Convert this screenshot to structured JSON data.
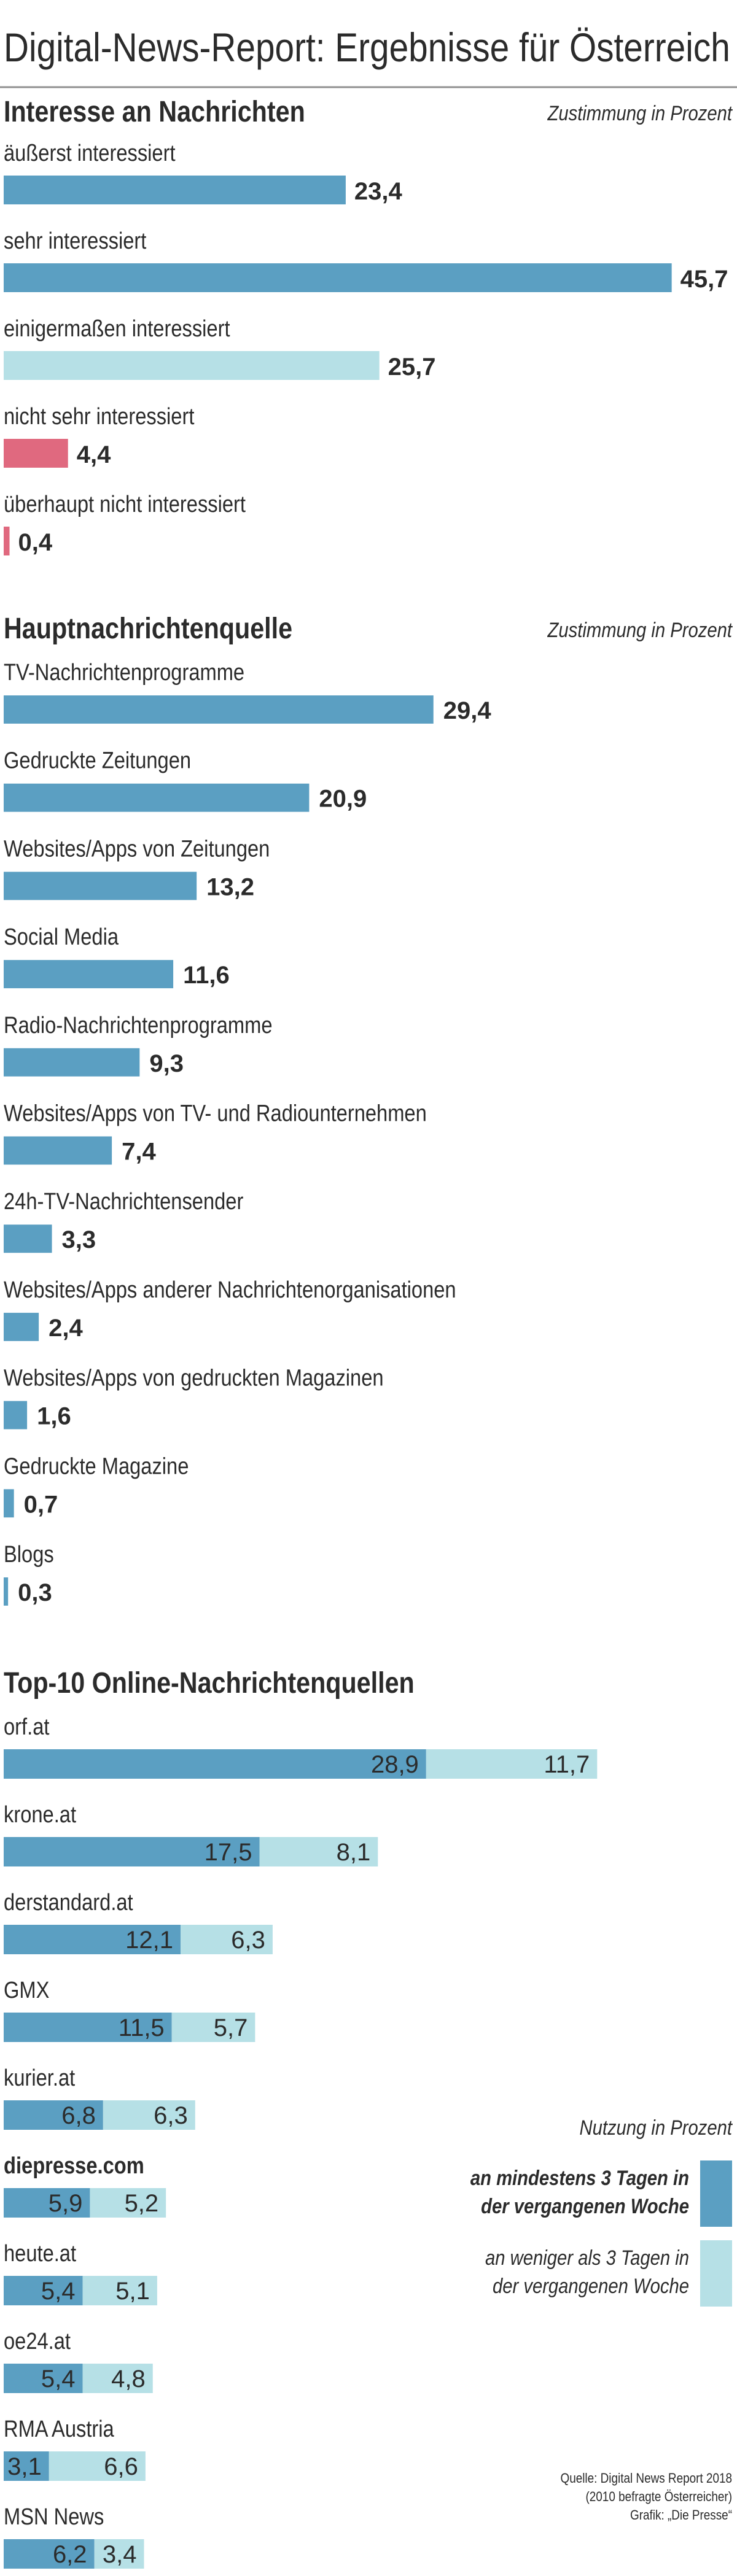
{
  "colors": {
    "dark_blue": "#5b9fc2",
    "light_blue": "#b6e0e6",
    "pink": "#e0697f",
    "text": "#2b2b2b",
    "rule": "#8f8f8f"
  },
  "page_title": "Digital-News-Report: Ergebnisse für Österreich",
  "chart_data": [
    {
      "type": "bar",
      "title": "Interesse an Nachrichten",
      "unit_note": "Zustimmung in Prozent",
      "categories": [
        "äußerst interessiert",
        "sehr interessiert",
        "einigermaßen interessiert",
        "nicht sehr interessiert",
        "überhaupt nicht interessiert"
      ],
      "values": [
        "23,4",
        "45,7",
        "25,7",
        "4,4",
        "0,4"
      ],
      "bar_colors": [
        "dark_blue",
        "dark_blue",
        "light_blue",
        "pink",
        "pink"
      ]
    },
    {
      "type": "bar",
      "title": "Hauptnachrichtenquelle",
      "unit_note": "Zustimmung in Prozent",
      "categories": [
        "TV-Nachrichtenprogramme",
        "Gedruckte Zeitungen",
        "Websites/Apps von Zeitungen",
        "Social Media",
        "Radio-Nachrichtenprogramme",
        "Websites/Apps von TV- und Radiounternehmen",
        "24h-TV-Nachrichtensender",
        "Websites/Apps anderer Nachrichtenorganisationen",
        "Websites/Apps von gedruckten Magazinen",
        "Gedruckte Magazine",
        "Blogs"
      ],
      "values": [
        "29,4",
        "20,9",
        "13,2",
        "11,6",
        "9,3",
        "7,4",
        "3,3",
        "2,4",
        "1,6",
        "0,7",
        "0,3"
      ]
    },
    {
      "type": "bar",
      "stacked": true,
      "title": "Top-10 Online-Nachrichtenquellen",
      "unit_note": "Nutzung in Prozent",
      "categories": [
        "orf.at",
        "krone.at",
        "derstandard.at",
        "GMX",
        "kurier.at",
        "diepresse.com",
        "heute.at",
        "oe24.at",
        "RMA Austria",
        "MSN News"
      ],
      "bold_categories": [
        "diepresse.com"
      ],
      "series": [
        {
          "name": "an mindestens 3 Tagen in der vergangenen Woche",
          "values": [
            "28,9",
            "17,5",
            "12,1",
            "11,5",
            "6,8",
            "5,9",
            "5,4",
            "5,4",
            "3,1",
            "6,2"
          ]
        },
        {
          "name": "an weniger als 3 Tagen in der vergangenen Woche",
          "values": [
            "11,7",
            "8,1",
            "6,3",
            "5,7",
            "6,3",
            "5,2",
            "5,1",
            "4,8",
            "6,6",
            "3,4"
          ]
        }
      ],
      "legend": [
        "an mindestens 3 Tagen in\nder vergangenen Woche",
        "an weniger als 3 Tagen in\nder vergangenen Woche"
      ]
    }
  ],
  "source": [
    "Quelle: Digital News Report 2018",
    "(2010 befragte Österreicher)",
    "Grafik: „Die Presse“"
  ]
}
